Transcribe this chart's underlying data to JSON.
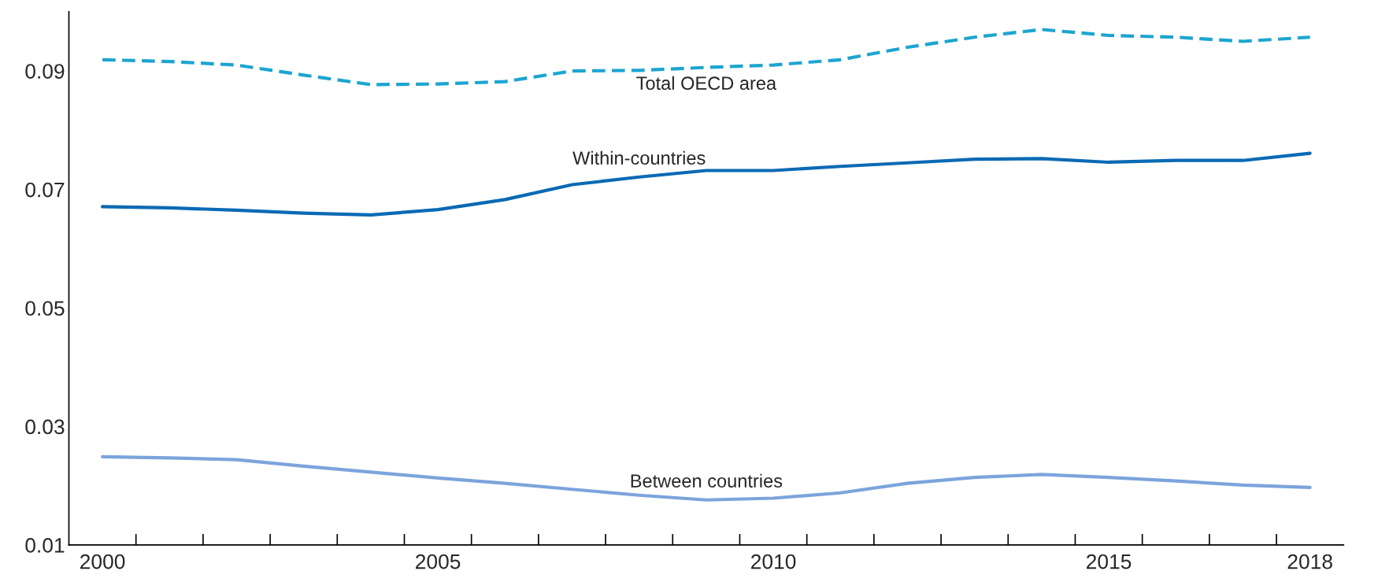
{
  "chart_data": {
    "type": "line",
    "x": [
      2000,
      2001,
      2002,
      2003,
      2004,
      2005,
      2006,
      2007,
      2008,
      2009,
      2010,
      2011,
      2012,
      2013,
      2014,
      2015,
      2016,
      2017,
      2018
    ],
    "series": [
      {
        "name": "Total OECD area",
        "color": "#1ca5d0",
        "line_style": "dashed",
        "values": [
          0.0919,
          0.0916,
          0.091,
          0.0893,
          0.0877,
          0.0878,
          0.0882,
          0.09,
          0.0901,
          0.0906,
          0.091,
          0.0919,
          0.094,
          0.0957,
          0.097,
          0.096,
          0.0957,
          0.095,
          0.0957
        ]
      },
      {
        "name": "Within-countries",
        "color": "#0a6ab4",
        "line_style": "solid",
        "values": [
          0.0671,
          0.0669,
          0.0665,
          0.066,
          0.0657,
          0.0666,
          0.0683,
          0.0708,
          0.0721,
          0.0732,
          0.0732,
          0.0739,
          0.0745,
          0.0751,
          0.0752,
          0.0746,
          0.0749,
          0.0749,
          0.0761
        ]
      },
      {
        "name": "Between countries",
        "color": "#7ca4dc",
        "line_style": "solid",
        "values": [
          0.0249,
          0.0247,
          0.0244,
          0.0233,
          0.0223,
          0.0213,
          0.0204,
          0.0194,
          0.0184,
          0.0176,
          0.0179,
          0.0188,
          0.0204,
          0.0214,
          0.0219,
          0.0214,
          0.0208,
          0.0201,
          0.0197
        ]
      }
    ],
    "xlim": [
      1999.5,
      2018.5
    ],
    "xticks": [
      2000,
      2005,
      2010,
      2015,
      2018,
      {
        "value": 2000.5,
        "label": null
      },
      {
        "value": 2001.5,
        "label": null
      },
      {
        "value": 2002.5,
        "label": null
      },
      {
        "value": 2003.5,
        "label": null
      },
      {
        "value": 2004.5,
        "label": null
      },
      {
        "value": 2005.5,
        "label": null
      },
      {
        "value": 2006.5,
        "label": null
      },
      {
        "value": 2007.5,
        "label": null
      },
      {
        "value": 2008.5,
        "label": null
      },
      {
        "value": 2009.5,
        "label": null
      },
      {
        "value": 2010.5,
        "label": null
      },
      {
        "value": 2011.5,
        "label": null
      },
      {
        "value": 2012.5,
        "label": null
      },
      {
        "value": 2013.5,
        "label": null
      },
      {
        "value": 2014.5,
        "label": null
      },
      {
        "value": 2015.5,
        "label": null
      },
      {
        "value": 2016.5,
        "label": null
      },
      {
        "value": 2017.5,
        "label": null
      }
    ],
    "ylim": [
      0.01,
      0.1
    ],
    "yticks": [
      0.01,
      0.03,
      0.05,
      0.07,
      0.09
    ],
    "grid": false,
    "legend": false
  }
}
